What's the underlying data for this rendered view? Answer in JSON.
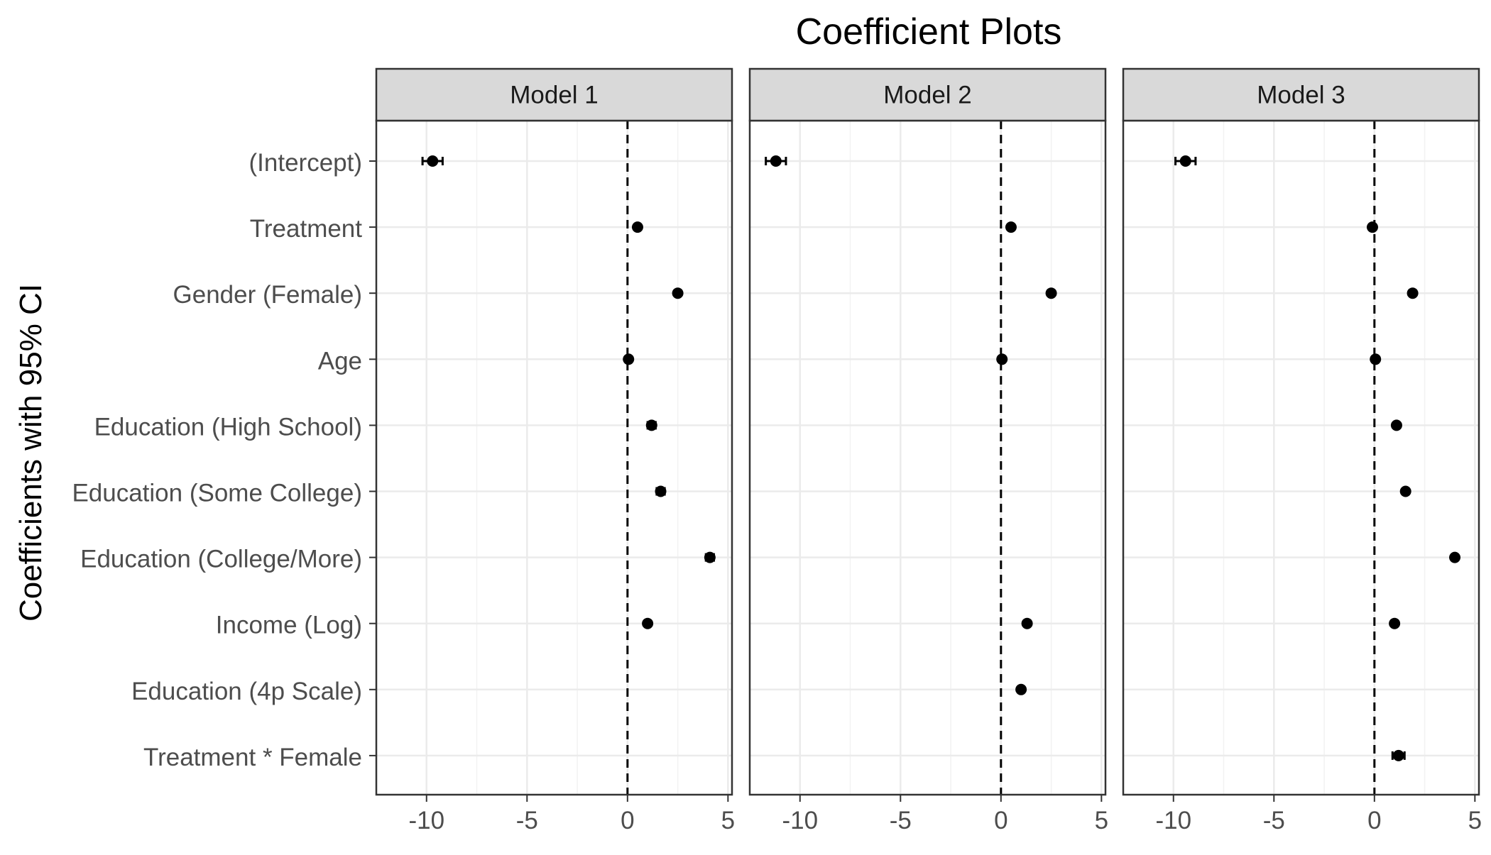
{
  "chart_data": {
    "type": "scatter",
    "title": "Coefficient Plots",
    "ylabel": "Coefficients with 95% CI",
    "xlabel": "",
    "xlim": [
      -12.5,
      5.2
    ],
    "x_ticks": [
      -10,
      -5,
      0,
      5
    ],
    "x_tick_labels": [
      "-10",
      "-5",
      "0",
      "5"
    ],
    "reference_line": 0,
    "grid": true,
    "categories": [
      "(Intercept)",
      "Treatment",
      "Gender (Female)",
      "Age",
      "Education (High School)",
      "Education (Some College)",
      "Education (College/More)",
      "Income (Log)",
      "Education (4p Scale)",
      "Treatment * Female"
    ],
    "panels": [
      {
        "name": "Model 1",
        "points": [
          {
            "term": "(Intercept)",
            "estimate": -9.7,
            "ci": [
              -10.2,
              -9.2
            ]
          },
          {
            "term": "Treatment",
            "estimate": 0.5,
            "ci": [
              0.4,
              0.6
            ]
          },
          {
            "term": "Gender (Female)",
            "estimate": 2.5,
            "ci": [
              2.4,
              2.6
            ]
          },
          {
            "term": "Age",
            "estimate": 0.05,
            "ci": [
              0.0,
              0.1
            ]
          },
          {
            "term": "Education (High School)",
            "estimate": 1.2,
            "ci": [
              1.0,
              1.4
            ]
          },
          {
            "term": "Education (Some College)",
            "estimate": 1.65,
            "ci": [
              1.45,
              1.85
            ]
          },
          {
            "term": "Education (College/More)",
            "estimate": 4.1,
            "ci": [
              3.9,
              4.3
            ]
          },
          {
            "term": "Income (Log)",
            "estimate": 1.0,
            "ci": [
              0.9,
              1.1
            ]
          }
        ]
      },
      {
        "name": "Model 2",
        "points": [
          {
            "term": "(Intercept)",
            "estimate": -11.2,
            "ci": [
              -11.7,
              -10.7
            ]
          },
          {
            "term": "Treatment",
            "estimate": 0.5,
            "ci": [
              0.4,
              0.6
            ]
          },
          {
            "term": "Gender (Female)",
            "estimate": 2.5,
            "ci": [
              2.4,
              2.6
            ]
          },
          {
            "term": "Age",
            "estimate": 0.05,
            "ci": [
              0.0,
              0.1
            ]
          },
          {
            "term": "Income (Log)",
            "estimate": 1.3,
            "ci": [
              1.2,
              1.4
            ]
          },
          {
            "term": "Education (4p Scale)",
            "estimate": 1.0,
            "ci": [
              0.9,
              1.1
            ]
          }
        ]
      },
      {
        "name": "Model 3",
        "points": [
          {
            "term": "(Intercept)",
            "estimate": -9.4,
            "ci": [
              -9.9,
              -8.9
            ]
          },
          {
            "term": "Treatment",
            "estimate": -0.1,
            "ci": [
              -0.2,
              0.0
            ]
          },
          {
            "term": "Gender (Female)",
            "estimate": 1.9,
            "ci": [
              1.8,
              2.0
            ]
          },
          {
            "term": "Age",
            "estimate": 0.05,
            "ci": [
              0.0,
              0.1
            ]
          },
          {
            "term": "Education (High School)",
            "estimate": 1.1,
            "ci": [
              1.0,
              1.2
            ]
          },
          {
            "term": "Education (Some College)",
            "estimate": 1.55,
            "ci": [
              1.45,
              1.65
            ]
          },
          {
            "term": "Education (College/More)",
            "estimate": 4.0,
            "ci": [
              3.9,
              4.1
            ]
          },
          {
            "term": "Income (Log)",
            "estimate": 1.0,
            "ci": [
              0.9,
              1.1
            ]
          },
          {
            "term": "Treatment * Female",
            "estimate": 1.2,
            "ci": [
              0.9,
              1.5
            ]
          }
        ]
      }
    ]
  },
  "colors": {
    "point": "#000000",
    "strip_fill": "#d9d9d9",
    "panel_border": "#333333",
    "grid_major": "#ebebeb",
    "grid_minor": "#f2f2f2",
    "tick_label": "#4d4d4d",
    "text": "#000000"
  }
}
